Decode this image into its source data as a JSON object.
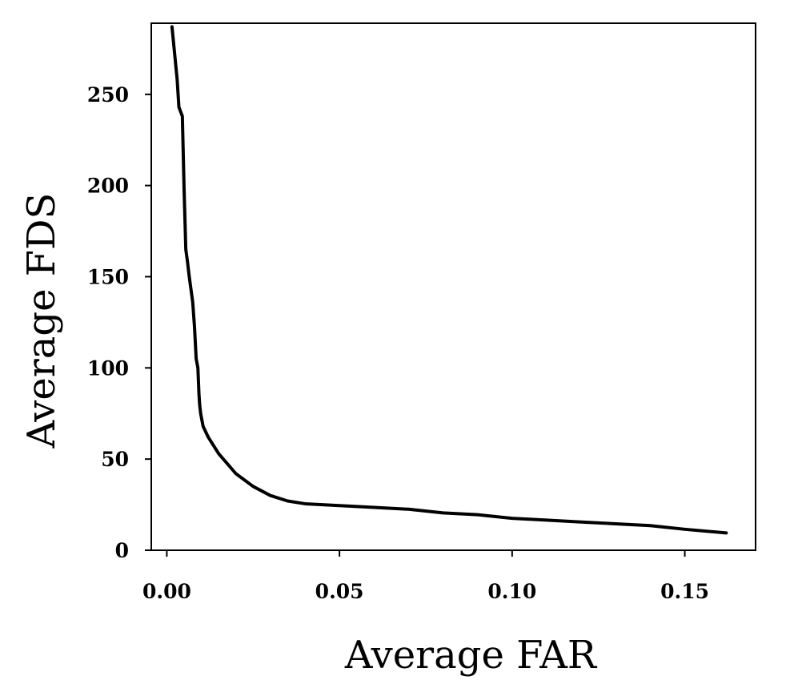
{
  "chart_data": {
    "type": "line",
    "title": "",
    "xlabel": "Average FAR",
    "ylabel": "Average FDS",
    "xlim": [
      -0.0045,
      0.1705
    ],
    "ylim": [
      0,
      289
    ],
    "xticks": [
      0.0,
      0.05,
      0.1,
      0.15
    ],
    "xtick_labels": [
      "0.00",
      "0.05",
      "0.10",
      "0.15"
    ],
    "yticks": [
      0,
      50,
      100,
      150,
      200,
      250
    ],
    "ytick_labels": [
      "0",
      "50",
      "100",
      "150",
      "200",
      "250"
    ],
    "grid": false,
    "legend": "none",
    "series": [
      {
        "color": "#000000",
        "x": [
          0.0015,
          0.003,
          0.0035,
          0.0045,
          0.005,
          0.0055,
          0.006,
          0.0065,
          0.0075,
          0.008,
          0.0085,
          0.009,
          0.0093,
          0.0095,
          0.0098,
          0.0105,
          0.012,
          0.015,
          0.02,
          0.025,
          0.03,
          0.035,
          0.04,
          0.045,
          0.05,
          0.06,
          0.07,
          0.08,
          0.09,
          0.1,
          0.11,
          0.12,
          0.13,
          0.14,
          0.15,
          0.162
        ],
        "y": [
          287,
          258,
          243,
          238,
          198,
          165,
          158,
          150,
          136,
          123,
          105,
          100,
          86,
          80,
          75,
          68,
          62,
          53,
          42,
          35,
          30,
          27,
          25.5,
          25,
          24.5,
          23.5,
          22.5,
          20.5,
          19.5,
          17.5,
          16.5,
          15.5,
          14.5,
          13.5,
          11.5,
          9.5
        ]
      }
    ]
  }
}
